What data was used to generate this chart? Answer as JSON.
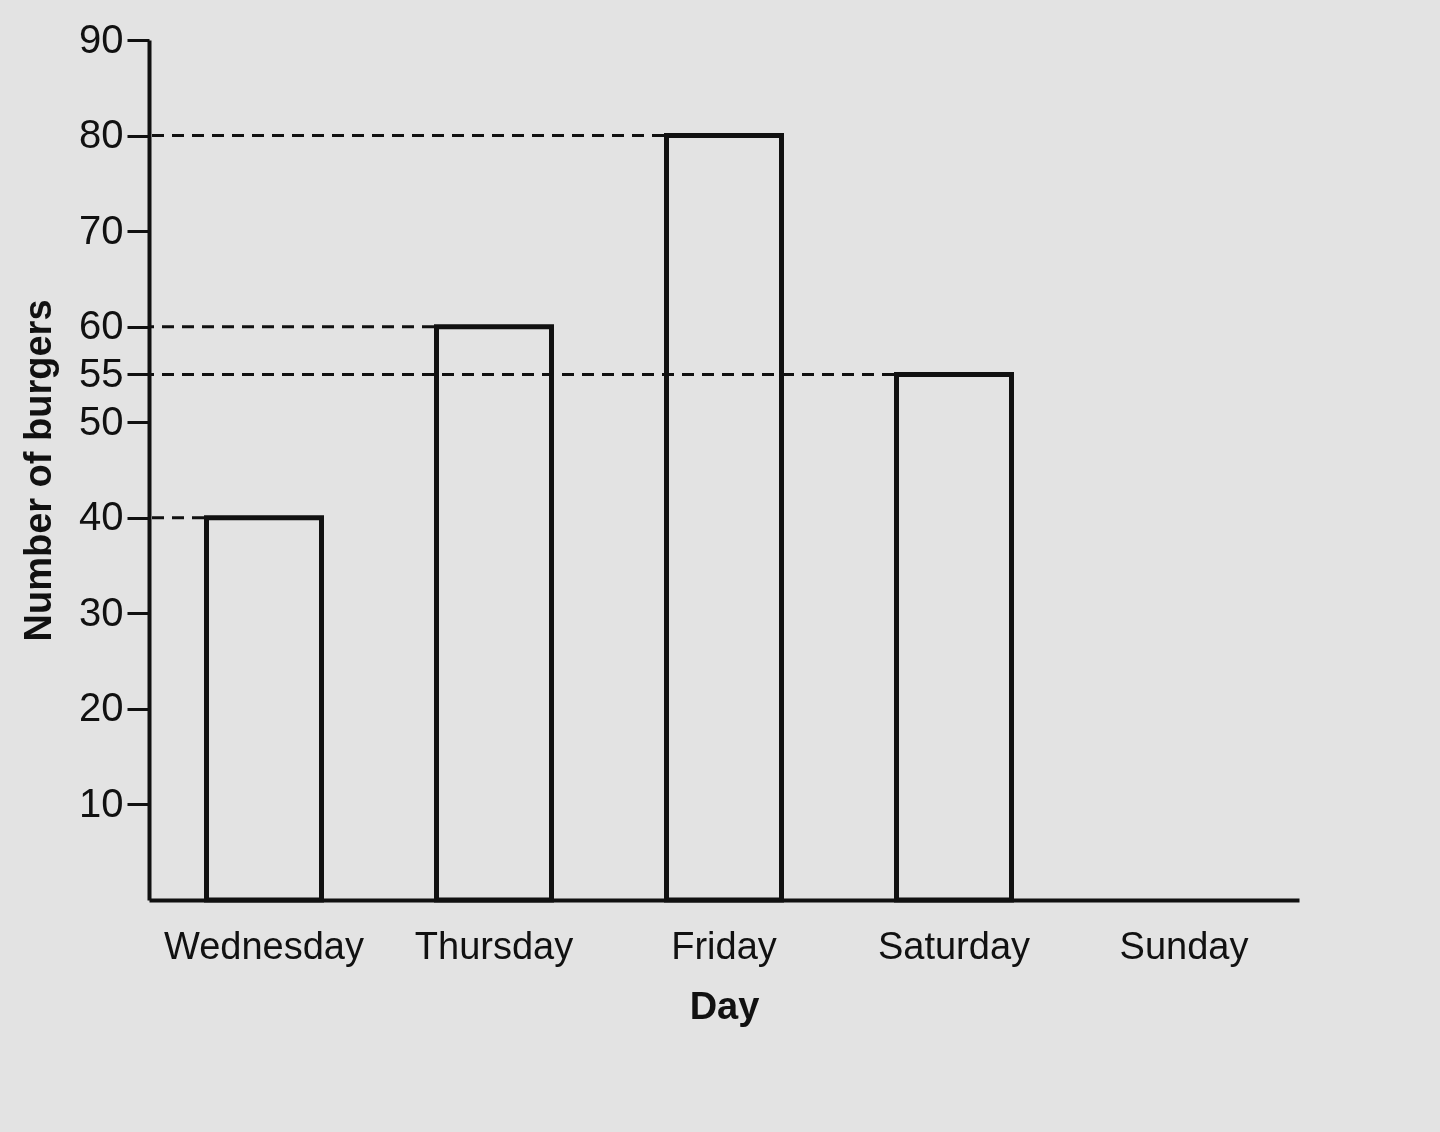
{
  "chart_data": {
    "type": "bar",
    "xlabel": "Day",
    "ylabel": "Number of burgers",
    "categories": [
      "Wednesday",
      "Thursday",
      "Friday",
      "Saturday",
      "Sunday"
    ],
    "values": [
      40,
      60,
      80,
      55,
      null
    ],
    "color": "#e3e3e3",
    "ylim": [
      0,
      90
    ],
    "yticks": [
      10,
      20,
      30,
      40,
      50,
      55,
      60,
      70,
      80,
      90
    ],
    "grid": false,
    "ref_lines": [
      {
        "axis": "y",
        "value": 80,
        "line_style": "dashed"
      },
      {
        "axis": "y",
        "value": 60,
        "line_style": "dashed"
      },
      {
        "axis": "y",
        "value": 55,
        "line_style": "dashed"
      },
      {
        "axis": "y",
        "value": 40,
        "line_style": "dashed"
      }
    ]
  }
}
